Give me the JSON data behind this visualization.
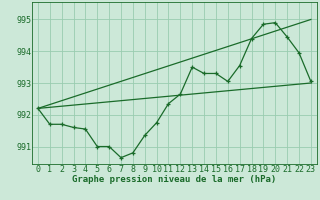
{
  "xlabel": "Graphe pression niveau de la mer (hPa)",
  "background_color": "#cce8d8",
  "grid_color": "#99ccb0",
  "line_color": "#1a6b2a",
  "text_color": "#1a6b2a",
  "xlim": [
    -0.5,
    23.5
  ],
  "ylim": [
    990.45,
    995.55
  ],
  "yticks": [
    991,
    992,
    993,
    994,
    995
  ],
  "xticks": [
    0,
    1,
    2,
    3,
    4,
    5,
    6,
    7,
    8,
    9,
    10,
    11,
    12,
    13,
    14,
    15,
    16,
    17,
    18,
    19,
    20,
    21,
    22,
    23
  ],
  "main_data": [
    [
      0,
      992.2
    ],
    [
      1,
      991.7
    ],
    [
      2,
      991.7
    ],
    [
      3,
      991.6
    ],
    [
      4,
      991.55
    ],
    [
      5,
      991.0
    ],
    [
      6,
      991.0
    ],
    [
      7,
      990.65
    ],
    [
      8,
      990.8
    ],
    [
      9,
      991.35
    ],
    [
      10,
      991.75
    ],
    [
      11,
      992.35
    ],
    [
      12,
      992.65
    ],
    [
      13,
      993.5
    ],
    [
      14,
      993.3
    ],
    [
      15,
      993.3
    ],
    [
      16,
      993.05
    ],
    [
      17,
      993.55
    ],
    [
      18,
      994.4
    ],
    [
      19,
      994.85
    ],
    [
      20,
      994.9
    ],
    [
      21,
      994.45
    ],
    [
      22,
      993.95
    ],
    [
      23,
      993.05
    ]
  ],
  "trend_line1": [
    [
      0,
      992.2
    ],
    [
      23,
      993.0
    ]
  ],
  "trend_line2": [
    [
      0,
      992.2
    ],
    [
      23,
      995.0
    ]
  ],
  "font_size_label": 6.5,
  "font_size_tick": 6.0
}
